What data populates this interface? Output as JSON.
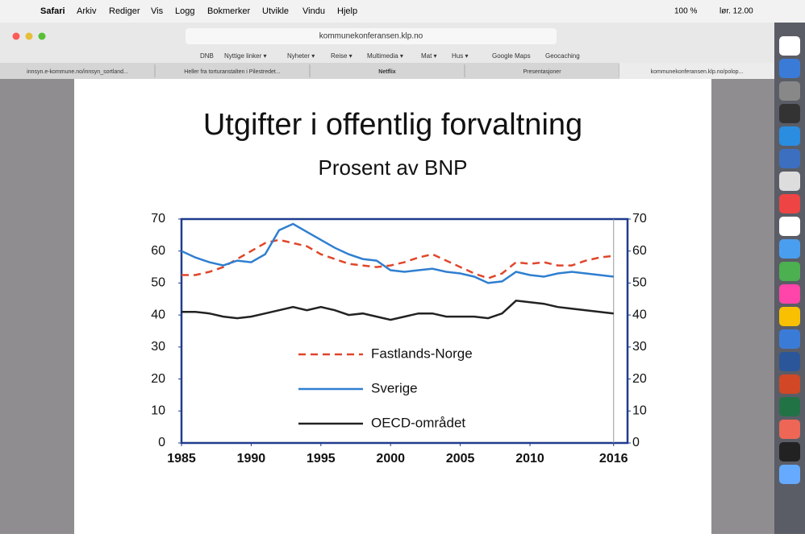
{
  "menubar": {
    "items": [
      "Safari",
      "Arkiv",
      "Rediger",
      "Vis",
      "Logg",
      "Bokmerker",
      "Utvikle",
      "Vindu",
      "Hjelp"
    ],
    "battery": "100 %",
    "clock": "lør. 12.00"
  },
  "toolbar": {
    "address": "kommunekonferansen.klp.no"
  },
  "bookmarks": [
    "DNB",
    "Nyttige linker ▾",
    "Nyheter ▾",
    "Reise ▾",
    "Multimedia ▾",
    "Mat ▾",
    "Hus ▾",
    "Google Maps",
    "Geocaching"
  ],
  "tabs": [
    "innsyn.e-kommune.no/innsyn_sortland...",
    "Heller fra torturanstalten i Pilestredet...",
    "Netflix",
    "Presentasjoner",
    "kommunekonferansen.klp.no/polop..."
  ],
  "chart_data": {
    "type": "line",
    "title": "Utgifter i offentlig forvaltning",
    "subtitle": "Prosent av BNP",
    "x": [
      1985,
      1986,
      1987,
      1988,
      1989,
      1990,
      1991,
      1992,
      1993,
      1994,
      1995,
      1996,
      1997,
      1998,
      1999,
      2000,
      2001,
      2002,
      2003,
      2004,
      2005,
      2006,
      2007,
      2008,
      2009,
      2010,
      2011,
      2012,
      2013,
      2014,
      2015,
      2016
    ],
    "series": [
      {
        "name": "Fastlands-Norge",
        "color": "#e0462a",
        "dashed": true,
        "values": [
          52.5,
          52.5,
          53.5,
          55,
          57.5,
          60,
          62.5,
          63.5,
          62.5,
          61.5,
          59,
          57.5,
          56,
          55.5,
          55,
          55.5,
          56.5,
          58,
          59,
          57,
          55,
          53,
          51.5,
          53,
          56.5,
          56,
          56.5,
          55.5,
          55.5,
          57,
          58,
          58.5
        ]
      },
      {
        "name": "Sverige",
        "color": "#2f7fd0",
        "dashed": false,
        "values": [
          60,
          58,
          56.5,
          55.5,
          57,
          56.5,
          59,
          66.5,
          68.5,
          66,
          63.5,
          61,
          59,
          57.5,
          57,
          54,
          53.5,
          54,
          54.5,
          53.5,
          53,
          52,
          50,
          50.5,
          53.5,
          52.5,
          52,
          53,
          53.5,
          53,
          52.5,
          52
        ]
      },
      {
        "name": "OECD-området",
        "color": "#222222",
        "dashed": false,
        "values": [
          41,
          41,
          40.5,
          39.5,
          39,
          39.5,
          40.5,
          41.5,
          42.5,
          41.5,
          42.5,
          41.5,
          40,
          40.5,
          39.5,
          38.5,
          39.5,
          40.5,
          40.5,
          39.5,
          39.5,
          39.5,
          39,
          40.5,
          44.5,
          44,
          43.5,
          42.5,
          42,
          41.5,
          41,
          40.5
        ]
      }
    ],
    "xlim": [
      1985,
      2017
    ],
    "xticks": [
      1985,
      1990,
      1995,
      2000,
      2005,
      2010,
      2016
    ],
    "ylim": [
      0,
      70
    ],
    "yticks": [
      0,
      10,
      20,
      30,
      40,
      50,
      60,
      70
    ],
    "y2lim": [
      0,
      70
    ],
    "y2ticks": [
      0,
      10,
      20,
      30,
      40,
      50,
      60,
      70
    ],
    "grid": false,
    "legend": "center"
  }
}
